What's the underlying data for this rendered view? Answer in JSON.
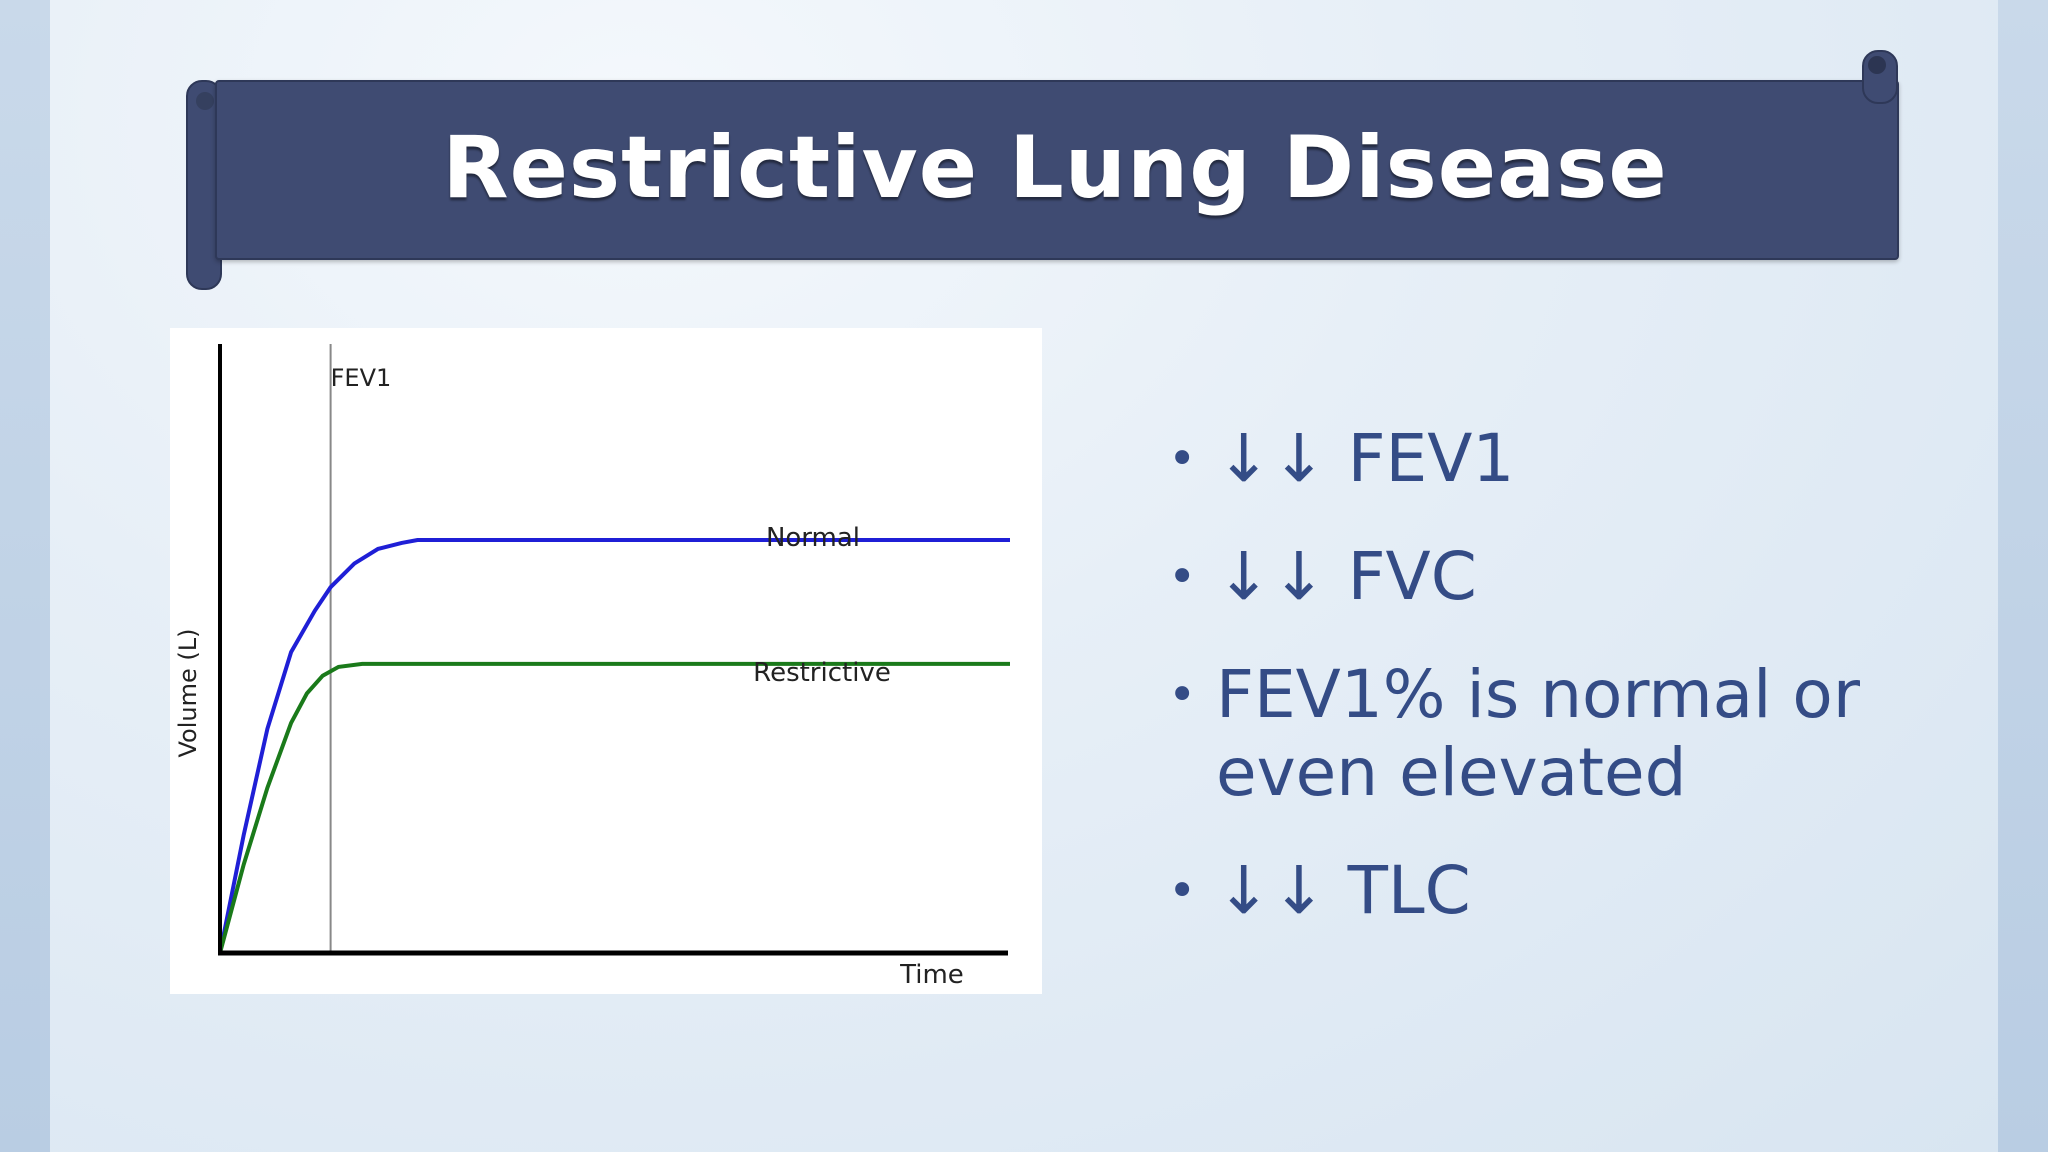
{
  "slide": {
    "title": "Restrictive Lung Disease"
  },
  "bullets": [
    "↓↓ FEV1",
    "↓↓ FVC",
    "FEV1% is normal or even elevated",
    "↓↓ TLC"
  ],
  "colors": {
    "banner": "#3f4b72",
    "bullet_text": "#344c86",
    "normal_line": "#1f1fd6",
    "restrictive_line": "#1a7a1a"
  },
  "chart_data": {
    "type": "line",
    "title": "",
    "xlabel": "Time",
    "ylabel": "Volume (L)",
    "xlim": [
      0,
      10
    ],
    "ylim": [
      0,
      10
    ],
    "grid": false,
    "annotations": [
      {
        "label": "FEV1",
        "x": 1.4,
        "kind": "vertical-line"
      }
    ],
    "series": [
      {
        "name": "Normal",
        "color": "#1f1fd6",
        "x": [
          0,
          0.3,
          0.6,
          0.9,
          1.2,
          1.4,
          1.7,
          2.0,
          2.3,
          2.5,
          3.0,
          10
        ],
        "y": [
          0,
          2.0,
          3.8,
          5.1,
          5.8,
          6.2,
          6.6,
          6.85,
          6.95,
          7.0,
          7.0,
          7.0
        ]
      },
      {
        "name": "Restrictive",
        "color": "#1a7a1a",
        "x": [
          0,
          0.3,
          0.6,
          0.9,
          1.1,
          1.3,
          1.5,
          1.8,
          2.2,
          10
        ],
        "y": [
          0,
          1.5,
          2.8,
          3.9,
          4.4,
          4.7,
          4.85,
          4.9,
          4.9,
          4.9
        ]
      }
    ]
  }
}
